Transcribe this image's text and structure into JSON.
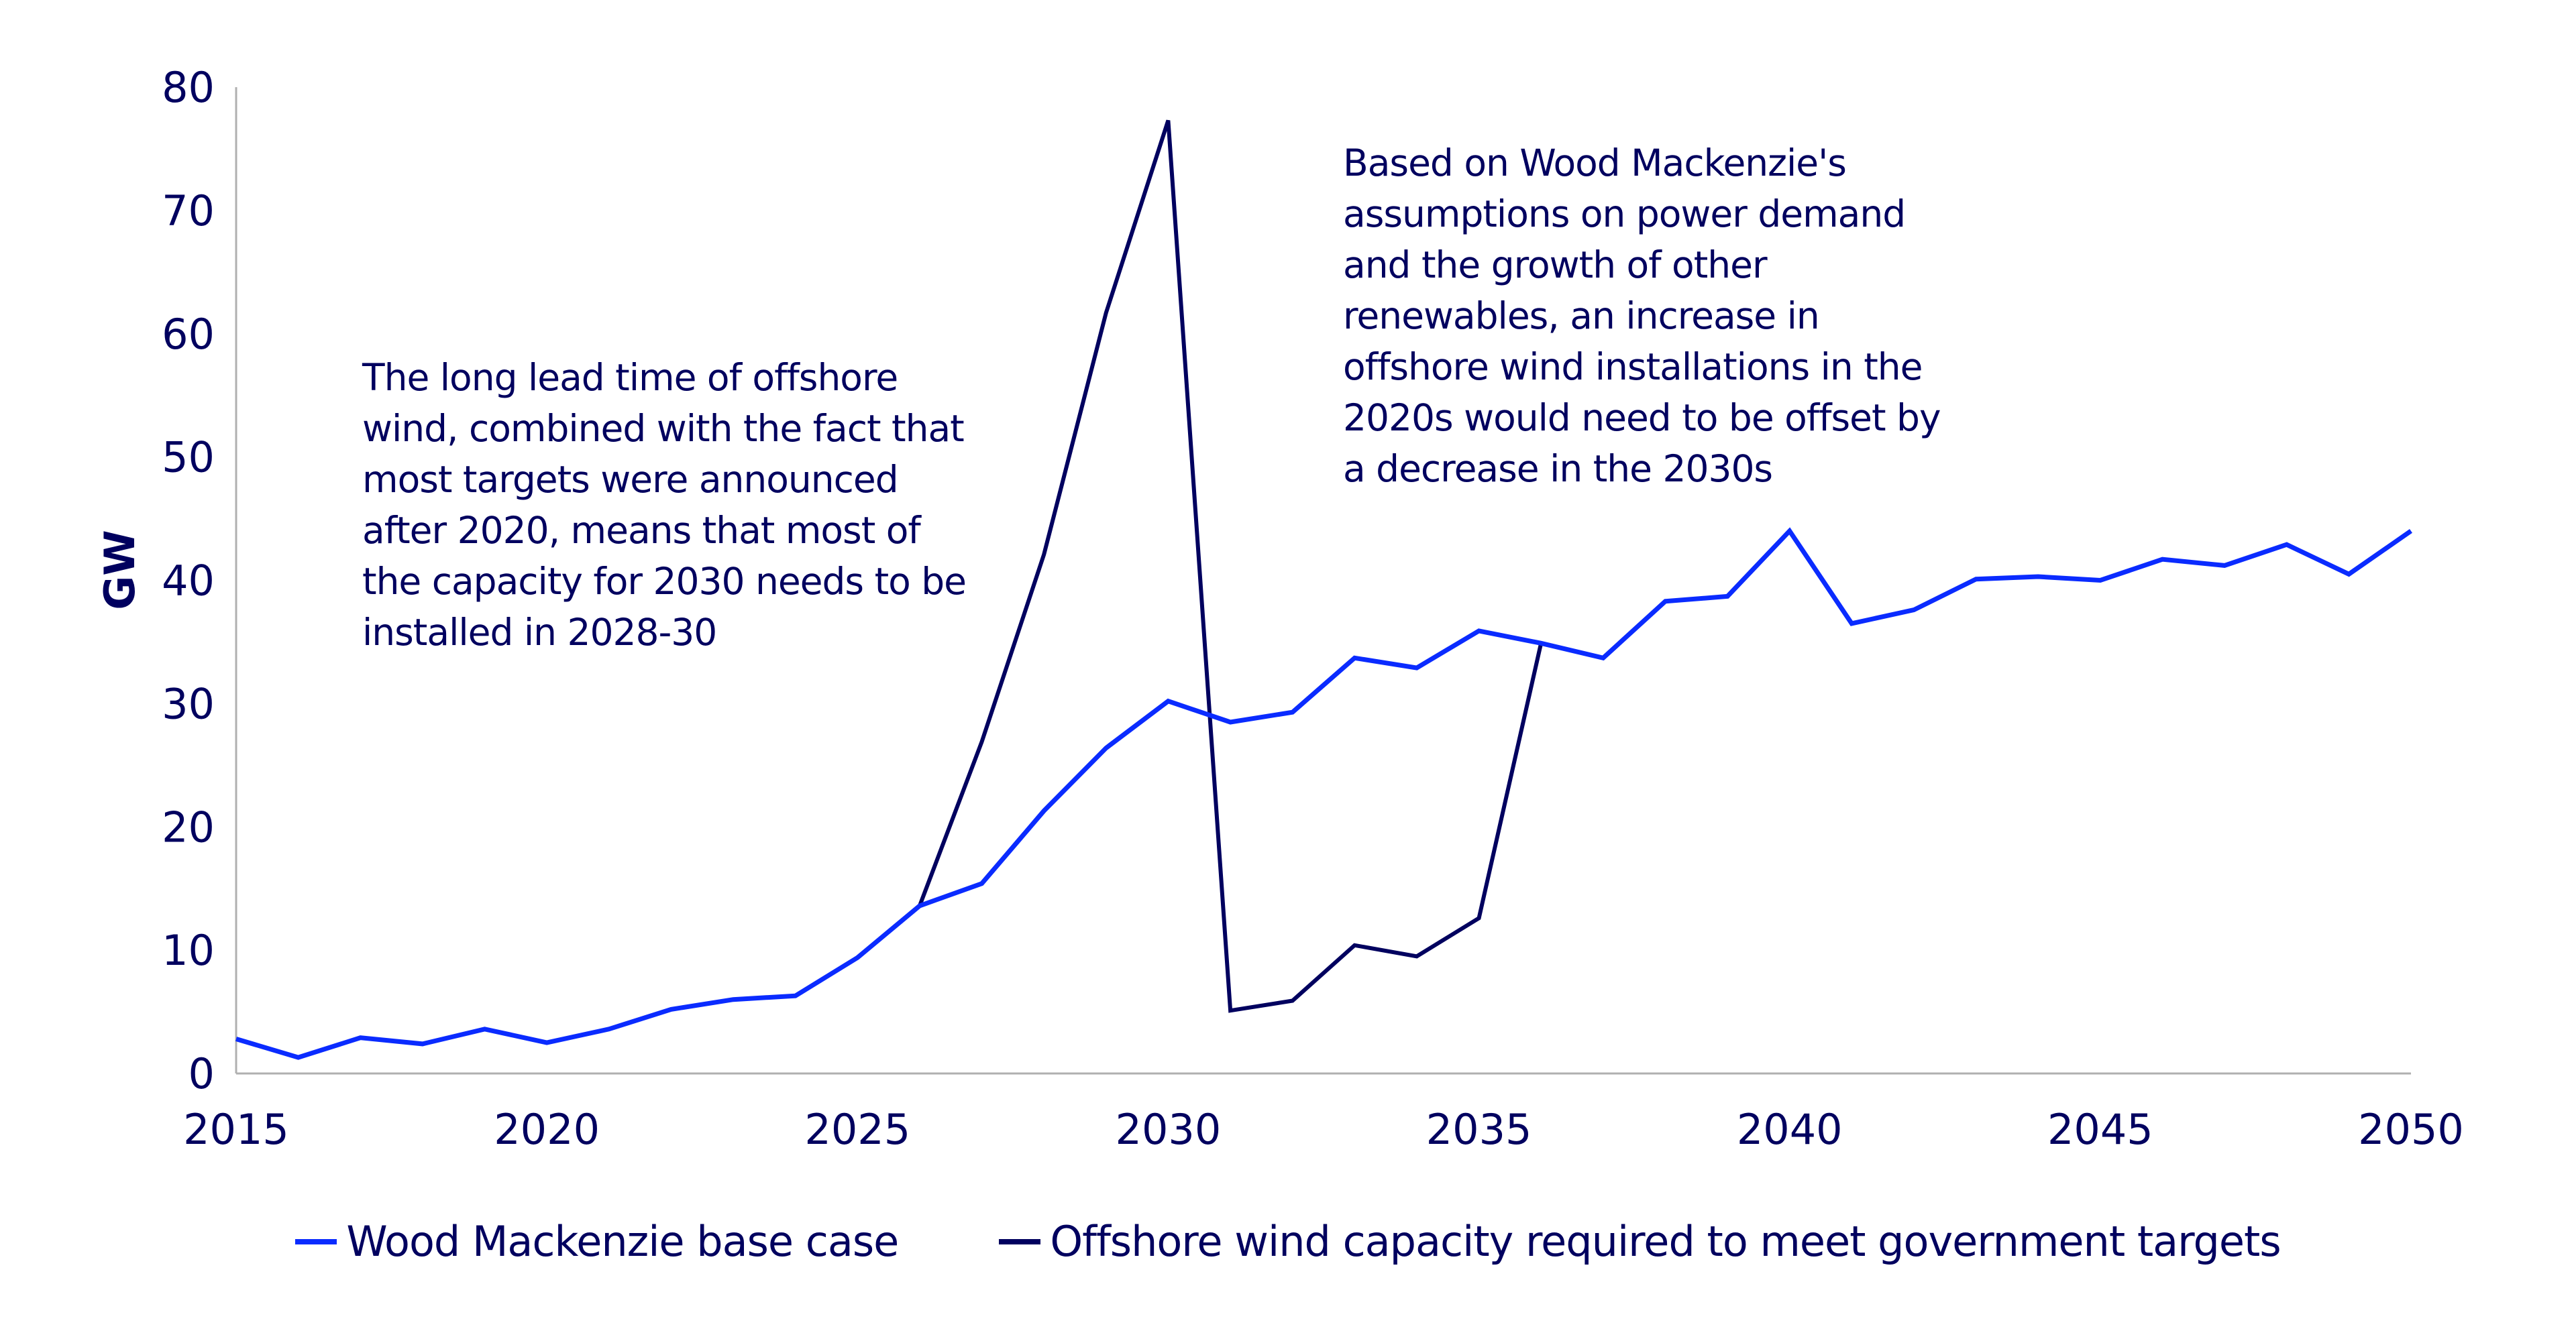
{
  "chart_data": {
    "type": "line",
    "title": "",
    "xlabel": "",
    "ylabel": "GW",
    "xlim": [
      2015,
      2050
    ],
    "ylim": [
      0,
      80
    ],
    "x_ticks": [
      2015,
      2020,
      2025,
      2030,
      2035,
      2040,
      2045,
      2050
    ],
    "y_ticks": [
      0,
      10,
      20,
      30,
      40,
      50,
      60,
      70,
      80
    ],
    "grid": false,
    "legend_position": "bottom",
    "series": [
      {
        "name": "Wood Mackenzie base case",
        "color": "#0a2bff",
        "x": [
          2015,
          2016,
          2017,
          2018,
          2019,
          2020,
          2021,
          2022,
          2023,
          2024,
          2025,
          2026,
          2027,
          2028,
          2029,
          2030,
          2031,
          2032,
          2033,
          2034,
          2035,
          2036,
          2037,
          2038,
          2039,
          2040,
          2041,
          2042,
          2043,
          2044,
          2045,
          2046,
          2047,
          2048,
          2049,
          2050
        ],
        "values": [
          2.8,
          1.3,
          2.9,
          2.4,
          3.6,
          2.5,
          3.6,
          5.2,
          6.0,
          6.3,
          9.4,
          13.6,
          15.4,
          21.3,
          26.4,
          30.2,
          28.5,
          29.3,
          33.7,
          32.9,
          35.9,
          34.9,
          33.7,
          38.3,
          38.7,
          44.0,
          36.5,
          37.6,
          40.1,
          40.3,
          40.0,
          41.7,
          41.2,
          42.9,
          40.5,
          44.0
        ]
      },
      {
        "name": "Offshore wind capacity required to meet government targets",
        "color": "#00005f",
        "x": [
          2026,
          2027,
          2028,
          2029,
          2030,
          2031,
          2032,
          2033,
          2034,
          2035,
          2036
        ],
        "values": [
          13.6,
          26.9,
          42.1,
          61.7,
          77.3,
          5.1,
          5.9,
          10.4,
          9.5,
          12.6,
          34.9
        ]
      }
    ],
    "annotations": [
      {
        "id": "lead-time-note",
        "text": "The long lead time of offshore\nwind, combined with the fact that\nmost targets were announced\nafter 2020, means that most of\nthe capacity for 2030 needs to be\ninstalled in 2028-30"
      },
      {
        "id": "offset-note",
        "text": "Based on Wood Mackenzie's\nassumptions on power demand\nand the growth of other\nrenewables, an increase in\noffshore wind installations in the\n2020s would need to be offset by\na decrease in the 2030s"
      }
    ]
  },
  "colors": {
    "text": "#00005f",
    "axis": "#b0b0b0",
    "base_case": "#0a2bff",
    "targets": "#00005f"
  }
}
